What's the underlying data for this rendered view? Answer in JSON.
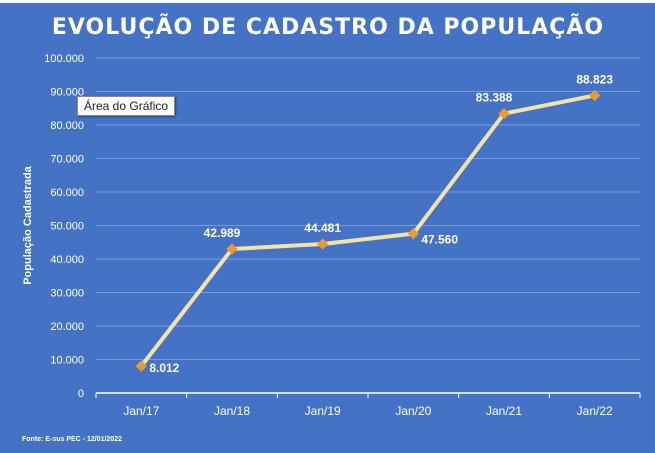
{
  "chart_data": {
    "type": "line",
    "title": "EVOLUÇÃO DE CADASTRO DA POPULAÇÃO",
    "xlabel": "",
    "ylabel": "População Cadastrada",
    "categories": [
      "Jan/17",
      "Jan/18",
      "Jan/19",
      "Jan/20",
      "Jan/21",
      "Jan/22"
    ],
    "values": [
      8012,
      42989,
      44481,
      47560,
      83388,
      88823
    ],
    "data_labels": [
      "8.012",
      "42.989",
      "44.481",
      "47.560",
      "83.388",
      "88.823"
    ],
    "ylim": [
      0,
      100000
    ],
    "yticks": [
      0,
      10000,
      20000,
      30000,
      40000,
      50000,
      60000,
      70000,
      80000,
      90000,
      100000
    ],
    "ytick_labels": [
      "0",
      "10.000",
      "20.000",
      "30.000",
      "40.000",
      "50.000",
      "60.000",
      "70.000",
      "80.000",
      "90.000",
      "100.000"
    ],
    "grid": true,
    "legend": "none",
    "colors": {
      "background": "#4472C4",
      "line": "#F5E3A6",
      "marker": "#ED9A2E",
      "text": "#FFFFFF",
      "grid": "#7A9BD8"
    }
  },
  "source_note": "Fonte: E-sus PEC - 12/01/2022",
  "tooltip": "Área do Gráfico"
}
